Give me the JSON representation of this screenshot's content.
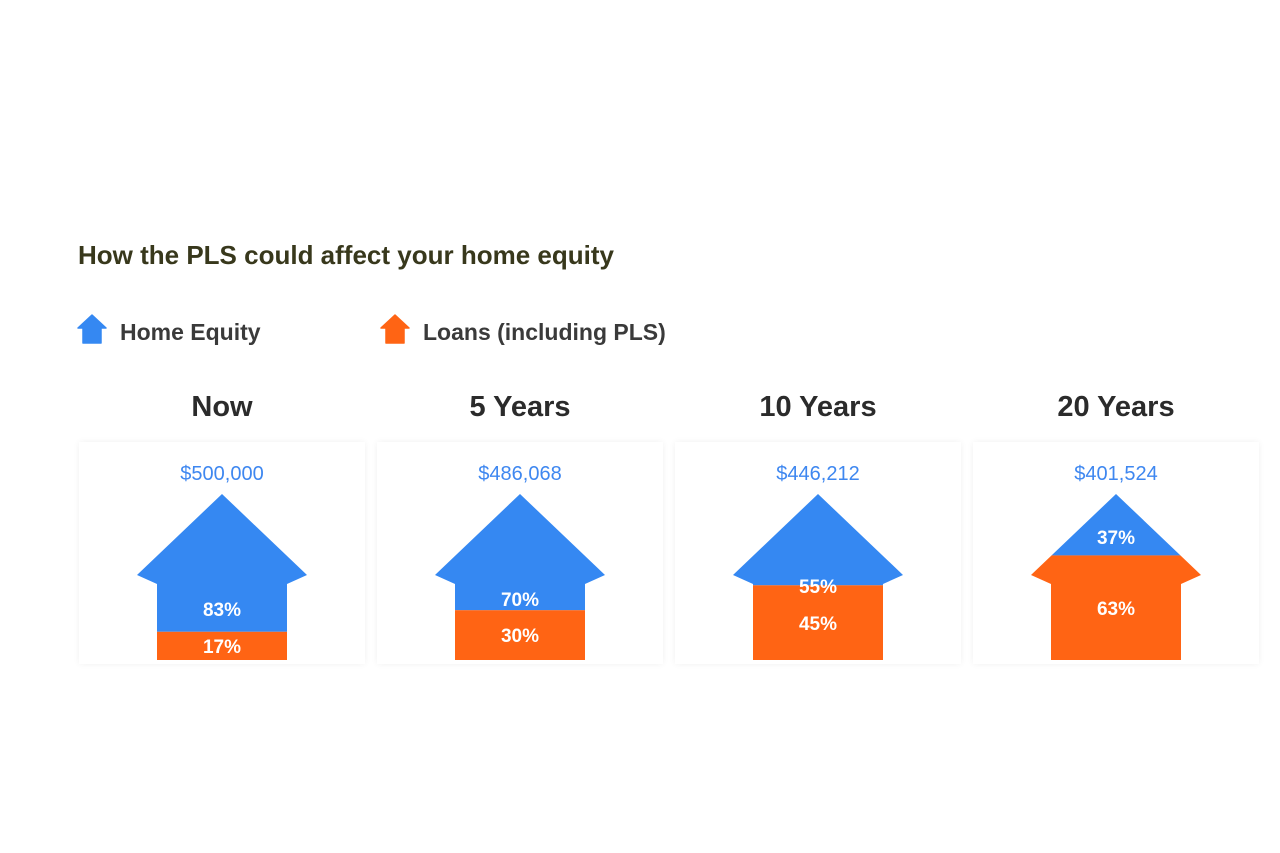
{
  "colors": {
    "equity": "#3588f2",
    "loans": "#ff6414"
  },
  "title": "How the PLS could affect your home equity",
  "legend": [
    {
      "label": "Home Equity",
      "color": "#3588f2",
      "icon": "house-icon"
    },
    {
      "label": "Loans (including PLS)",
      "color": "#ff6414",
      "icon": "house-icon"
    }
  ],
  "chart_data": {
    "type": "bar",
    "title": "How the PLS could affect your home equity",
    "categories": [
      "Now",
      "5 Years",
      "10 Years",
      "20 Years"
    ],
    "home_values": [
      "$500,000",
      "$486,068",
      "$446,212",
      "$401,524"
    ],
    "series": [
      {
        "name": "Home Equity",
        "values": [
          83,
          70,
          55,
          37
        ],
        "labels": [
          "83%",
          "70%",
          "55%",
          "37%"
        ]
      },
      {
        "name": "Loans (including PLS)",
        "values": [
          17,
          30,
          45,
          63
        ],
        "labels": [
          "17%",
          "30%",
          "45%",
          "63%"
        ]
      }
    ],
    "stacked": true,
    "ylim": [
      0,
      100
    ]
  }
}
